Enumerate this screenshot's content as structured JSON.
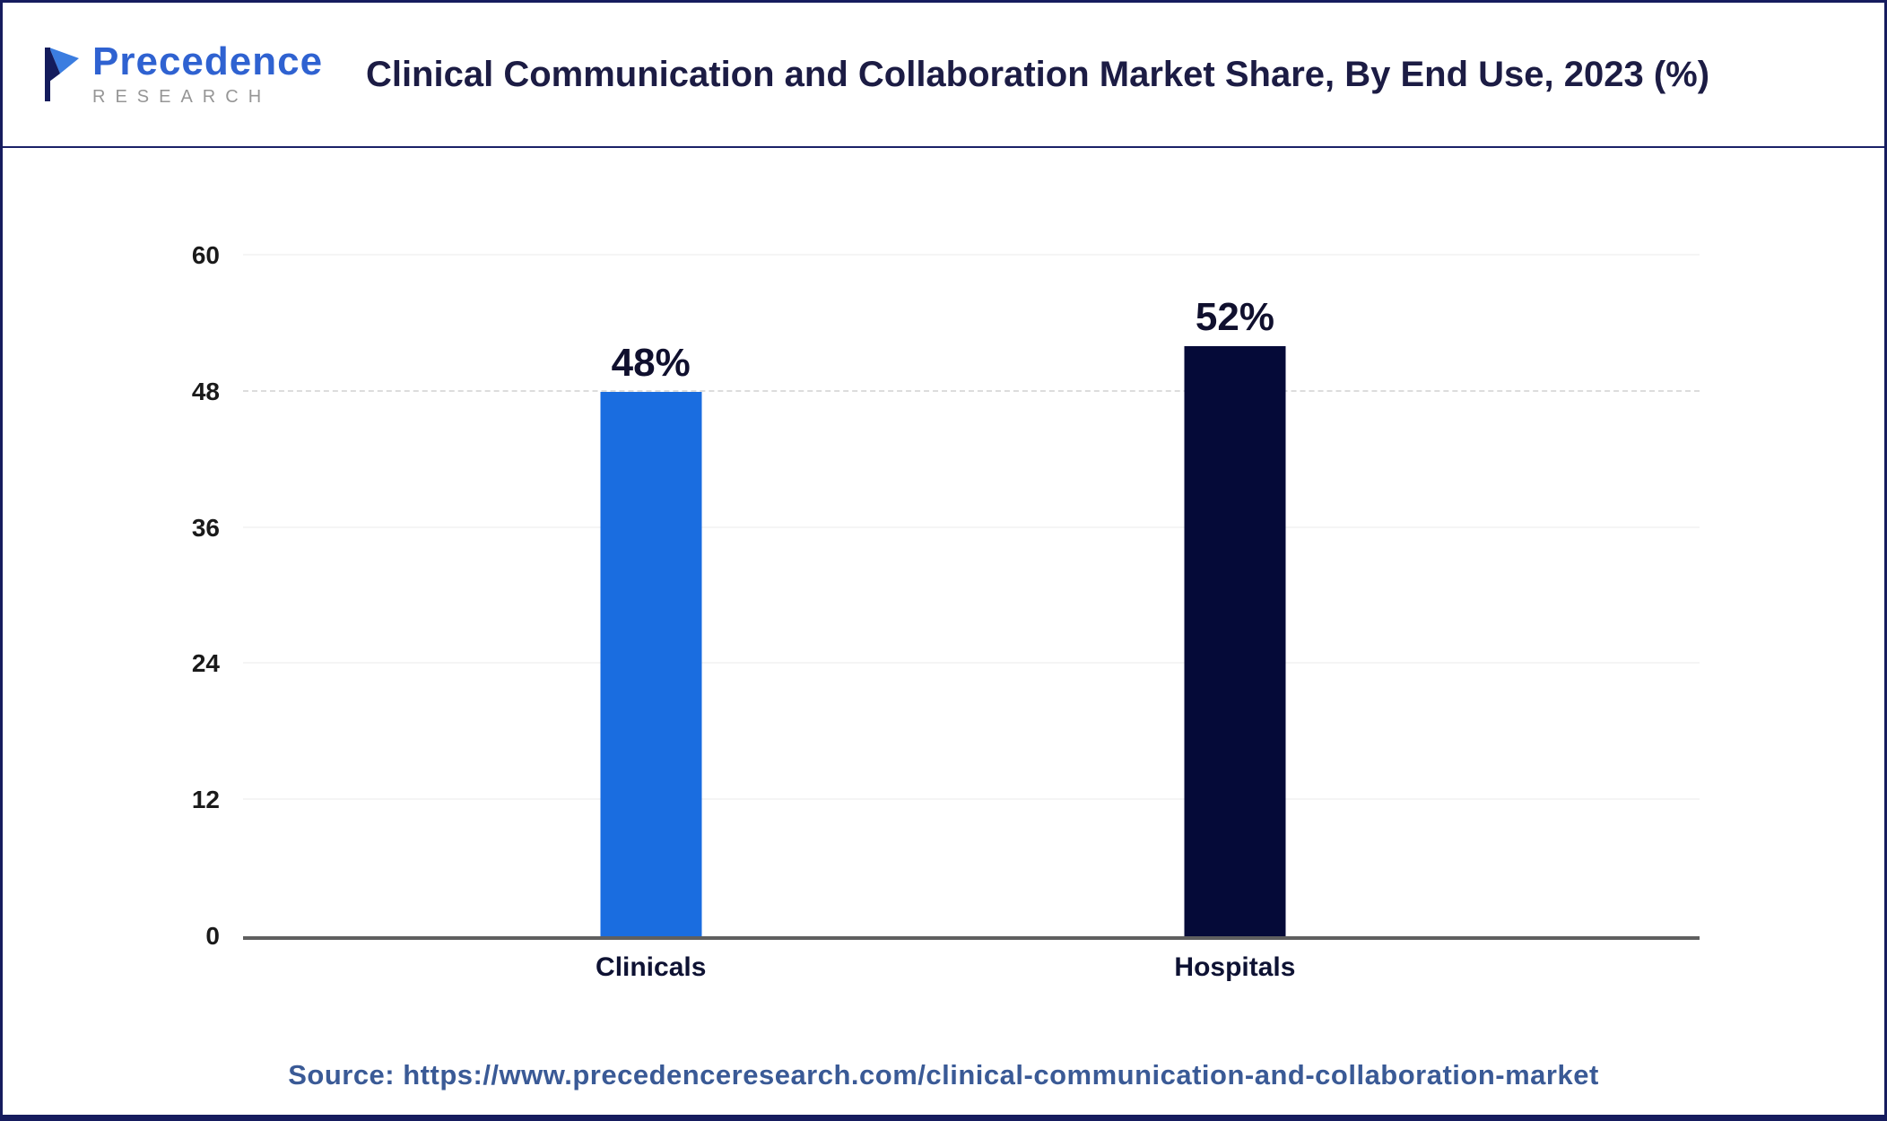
{
  "header": {
    "logo": {
      "name": "Precedence",
      "subtitle": "RESEARCH"
    },
    "title": "Clinical Communication and Collaboration Market Share, By End Use, 2023 (%)"
  },
  "chart_data": {
    "type": "bar",
    "title": "Clinical Communication and Collaboration Market Share, By End Use, 2023 (%)",
    "categories": [
      "Clinicals",
      "Hospitals"
    ],
    "values": [
      48,
      52
    ],
    "value_labels": [
      "48%",
      "52%"
    ],
    "bar_colors": [
      "#1a6de0",
      "#050a38"
    ],
    "xlabel": "",
    "ylabel": "",
    "ylim": [
      0,
      60
    ],
    "yticks": [
      0,
      12,
      24,
      36,
      48,
      60
    ],
    "dashed_gridline_at": 48,
    "bar_centers_frac": [
      0.28,
      0.681
    ],
    "grid": "faint horizontal",
    "legend": "none"
  },
  "footer": {
    "source": "Source: https://www.precedenceresearch.com/clinical-communication-and-collaboration-market"
  }
}
